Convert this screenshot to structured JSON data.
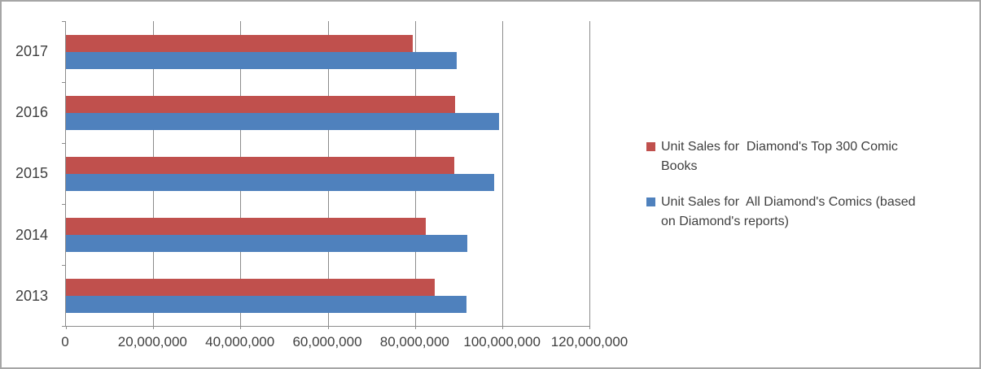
{
  "chart_data": {
    "type": "bar",
    "orientation": "horizontal",
    "title": "",
    "xlabel": "",
    "ylabel": "",
    "grid": true,
    "legend_position": "right",
    "categories": [
      "2017",
      "2016",
      "2015",
      "2014",
      "2013"
    ],
    "series": [
      {
        "name": "Unit Sales for Diamond's Top 300 Comic Books",
        "color": "#C0504D",
        "values": [
          79500000,
          89300000,
          89100000,
          82400000,
          84500000
        ]
      },
      {
        "name": "Unit Sales for All Diamond's Comics (based on Diamond's reports)",
        "color": "#4F81BD",
        "values": [
          89500000,
          99300000,
          98200000,
          92000000,
          91800000
        ]
      }
    ],
    "x_axis": {
      "min": 0,
      "max": 120000000,
      "tick_interval": 20000000,
      "tick_labels": [
        "0",
        "20,000,000",
        "40,000,000",
        "60,000,000",
        "80,000,000",
        "100,000,000",
        "120,000,000"
      ]
    }
  },
  "legend": {
    "items": [
      {
        "swatch_color": "#C0504D",
        "lines": [
          "Unit Sales for  Diamond's Top 300 Comic",
          "Books"
        ]
      },
      {
        "swatch_color": "#4F81BD",
        "lines": [
          "Unit Sales for  All Diamond's Comics (based",
          "on Diamond's reports)"
        ]
      }
    ]
  },
  "colors": {
    "series_red": "#C0504D",
    "series_blue": "#4F81BD",
    "axis_and_gridline": "#8C8C8C",
    "outer_border": "#A6A6A6",
    "text": "#3F3F3F",
    "background": "#FFFFFF"
  }
}
